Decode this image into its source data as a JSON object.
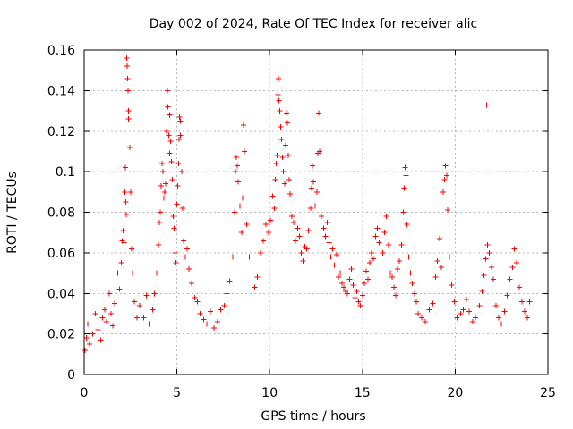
{
  "chart_data": {
    "type": "scatter",
    "title": "Day 002 of 2024, Rate Of TEC Index for receiver alic",
    "xlabel": "GPS time / hours",
    "ylabel": "ROTI / TECUs",
    "xlim": [
      0,
      25
    ],
    "ylim": [
      0,
      0.16
    ],
    "x_ticks": [
      0,
      5,
      10,
      15,
      20,
      25
    ],
    "x_tick_labels": [
      "0",
      "5",
      "10",
      "15",
      "20",
      "25"
    ],
    "y_ticks": [
      0,
      0.02,
      0.04,
      0.06,
      0.08,
      0.1,
      0.12,
      0.14,
      0.16
    ],
    "y_tick_labels": [
      "0",
      "0.02",
      "0.04",
      "0.06",
      "0.08",
      "0.1",
      "0.12",
      "0.14",
      "0.16"
    ],
    "grid": true,
    "marker": "+",
    "series": [
      {
        "name": "ROTI",
        "color": "#ff0000",
        "points": [
          [
            0.05,
            0.012
          ],
          [
            0.12,
            0.018
          ],
          [
            0.2,
            0.025
          ],
          [
            0.3,
            0.015
          ],
          [
            0.45,
            0.02
          ],
          [
            0.6,
            0.03
          ],
          [
            0.75,
            0.022
          ],
          [
            0.9,
            0.017
          ],
          [
            1.0,
            0.028
          ],
          [
            1.1,
            0.032
          ],
          [
            1.2,
            0.026
          ],
          [
            1.35,
            0.04
          ],
          [
            1.45,
            0.03
          ],
          [
            1.55,
            0.024
          ],
          [
            1.65,
            0.035
          ],
          [
            1.8,
            0.05
          ],
          [
            1.9,
            0.042
          ],
          [
            2.0,
            0.055
          ],
          [
            2.05,
            0.066
          ],
          [
            2.1,
            0.071
          ],
          [
            2.15,
            0.065
          ],
          [
            2.2,
            0.09
          ],
          [
            2.22,
            0.102
          ],
          [
            2.25,
            0.085
          ],
          [
            2.28,
            0.079
          ],
          [
            2.3,
            0.156
          ],
          [
            2.32,
            0.152
          ],
          [
            2.34,
            0.146
          ],
          [
            2.36,
            0.14
          ],
          [
            2.38,
            0.13
          ],
          [
            2.4,
            0.126
          ],
          [
            2.45,
            0.112
          ],
          [
            2.5,
            0.09
          ],
          [
            2.55,
            0.062
          ],
          [
            2.6,
            0.05
          ],
          [
            2.7,
            0.036
          ],
          [
            2.85,
            0.028
          ],
          [
            3.0,
            0.034
          ],
          [
            3.2,
            0.028
          ],
          [
            3.35,
            0.039
          ],
          [
            3.5,
            0.025
          ],
          [
            3.7,
            0.032
          ],
          [
            3.8,
            0.04
          ],
          [
            3.9,
            0.05
          ],
          [
            4.0,
            0.064
          ],
          [
            4.05,
            0.075
          ],
          [
            4.1,
            0.08
          ],
          [
            4.15,
            0.093
          ],
          [
            4.2,
            0.104
          ],
          [
            4.25,
            0.1
          ],
          [
            4.3,
            0.087
          ],
          [
            4.35,
            0.09
          ],
          [
            4.4,
            0.094
          ],
          [
            4.45,
            0.12
          ],
          [
            4.5,
            0.14
          ],
          [
            4.52,
            0.132
          ],
          [
            4.55,
            0.118
          ],
          [
            4.6,
            0.109
          ],
          [
            4.62,
            0.128
          ],
          [
            4.65,
            0.115
          ],
          [
            4.7,
            0.105
          ],
          [
            4.75,
            0.096
          ],
          [
            4.8,
            0.078
          ],
          [
            4.85,
            0.072
          ],
          [
            4.9,
            0.06
          ],
          [
            4.95,
            0.055
          ],
          [
            5.0,
            0.084
          ],
          [
            5.05,
            0.093
          ],
          [
            5.1,
            0.104
          ],
          [
            5.12,
            0.116
          ],
          [
            5.15,
            0.127
          ],
          [
            5.18,
            0.125
          ],
          [
            5.2,
            0.118
          ],
          [
            5.25,
            0.1
          ],
          [
            5.3,
            0.082
          ],
          [
            5.35,
            0.066
          ],
          [
            5.45,
            0.058
          ],
          [
            5.55,
            0.062
          ],
          [
            5.65,
            0.052
          ],
          [
            5.8,
            0.045
          ],
          [
            5.95,
            0.038
          ],
          [
            6.1,
            0.036
          ],
          [
            6.25,
            0.03
          ],
          [
            6.45,
            0.027
          ],
          [
            6.6,
            0.025
          ],
          [
            6.8,
            0.031
          ],
          [
            7.0,
            0.023
          ],
          [
            7.2,
            0.026
          ],
          [
            7.35,
            0.032
          ],
          [
            7.55,
            0.034
          ],
          [
            7.7,
            0.04
          ],
          [
            7.85,
            0.046
          ],
          [
            8.0,
            0.058
          ],
          [
            8.1,
            0.08
          ],
          [
            8.15,
            0.1
          ],
          [
            8.2,
            0.107
          ],
          [
            8.25,
            0.103
          ],
          [
            8.3,
            0.095
          ],
          [
            8.4,
            0.083
          ],
          [
            8.5,
            0.07
          ],
          [
            8.55,
            0.087
          ],
          [
            8.6,
            0.123
          ],
          [
            8.65,
            0.11
          ],
          [
            8.75,
            0.074
          ],
          [
            8.9,
            0.058
          ],
          [
            9.05,
            0.05
          ],
          [
            9.2,
            0.043
          ],
          [
            9.35,
            0.048
          ],
          [
            9.5,
            0.06
          ],
          [
            9.65,
            0.066
          ],
          [
            9.8,
            0.074
          ],
          [
            9.95,
            0.07
          ],
          [
            10.05,
            0.076
          ],
          [
            10.15,
            0.088
          ],
          [
            10.25,
            0.082
          ],
          [
            10.3,
            0.096
          ],
          [
            10.35,
            0.104
          ],
          [
            10.4,
            0.108
          ],
          [
            10.45,
            0.138
          ],
          [
            10.47,
            0.146
          ],
          [
            10.5,
            0.135
          ],
          [
            10.55,
            0.13
          ],
          [
            10.6,
            0.122
          ],
          [
            10.65,
            0.116
          ],
          [
            10.7,
            0.107
          ],
          [
            10.75,
            0.1
          ],
          [
            10.8,
            0.094
          ],
          [
            10.85,
            0.113
          ],
          [
            10.9,
            0.129
          ],
          [
            10.95,
            0.124
          ],
          [
            11.0,
            0.108
          ],
          [
            11.05,
            0.096
          ],
          [
            11.1,
            0.089
          ],
          [
            11.2,
            0.078
          ],
          [
            11.3,
            0.075
          ],
          [
            11.4,
            0.066
          ],
          [
            11.5,
            0.072
          ],
          [
            11.6,
            0.068
          ],
          [
            11.7,
            0.06
          ],
          [
            11.8,
            0.056
          ],
          [
            11.9,
            0.063
          ],
          [
            12.0,
            0.062
          ],
          [
            12.1,
            0.071
          ],
          [
            12.2,
            0.082
          ],
          [
            12.25,
            0.092
          ],
          [
            12.3,
            0.103
          ],
          [
            12.35,
            0.095
          ],
          [
            12.45,
            0.083
          ],
          [
            12.55,
            0.09
          ],
          [
            12.6,
            0.109
          ],
          [
            12.65,
            0.129
          ],
          [
            12.7,
            0.11
          ],
          [
            12.8,
            0.078
          ],
          [
            12.9,
            0.072
          ],
          [
            13.0,
            0.068
          ],
          [
            13.1,
            0.075
          ],
          [
            13.2,
            0.065
          ],
          [
            13.3,
            0.058
          ],
          [
            13.4,
            0.062
          ],
          [
            13.5,
            0.054
          ],
          [
            13.6,
            0.059
          ],
          [
            13.7,
            0.048
          ],
          [
            13.8,
            0.05
          ],
          [
            13.9,
            0.045
          ],
          [
            14.0,
            0.043
          ],
          [
            14.1,
            0.041
          ],
          [
            14.2,
            0.04
          ],
          [
            14.3,
            0.047
          ],
          [
            14.4,
            0.052
          ],
          [
            14.5,
            0.044
          ],
          [
            14.6,
            0.038
          ],
          [
            14.7,
            0.041
          ],
          [
            14.8,
            0.036
          ],
          [
            14.9,
            0.034
          ],
          [
            15.0,
            0.039
          ],
          [
            15.1,
            0.045
          ],
          [
            15.2,
            0.051
          ],
          [
            15.3,
            0.047
          ],
          [
            15.4,
            0.055
          ],
          [
            15.5,
            0.06
          ],
          [
            15.6,
            0.057
          ],
          [
            15.7,
            0.068
          ],
          [
            15.8,
            0.072
          ],
          [
            15.9,
            0.065
          ],
          [
            16.0,
            0.054
          ],
          [
            16.1,
            0.06
          ],
          [
            16.2,
            0.07
          ],
          [
            16.3,
            0.078
          ],
          [
            16.4,
            0.064
          ],
          [
            16.5,
            0.05
          ],
          [
            16.6,
            0.048
          ],
          [
            16.7,
            0.043
          ],
          [
            16.8,
            0.039
          ],
          [
            16.9,
            0.052
          ],
          [
            17.0,
            0.056
          ],
          [
            17.1,
            0.064
          ],
          [
            17.2,
            0.08
          ],
          [
            17.25,
            0.092
          ],
          [
            17.3,
            0.102
          ],
          [
            17.35,
            0.098
          ],
          [
            17.4,
            0.074
          ],
          [
            17.5,
            0.058
          ],
          [
            17.6,
            0.05
          ],
          [
            17.7,
            0.045
          ],
          [
            17.8,
            0.04
          ],
          [
            17.9,
            0.036
          ],
          [
            18.0,
            0.03
          ],
          [
            18.2,
            0.028
          ],
          [
            18.4,
            0.026
          ],
          [
            18.6,
            0.032
          ],
          [
            18.8,
            0.035
          ],
          [
            18.95,
            0.048
          ],
          [
            19.05,
            0.056
          ],
          [
            19.15,
            0.067
          ],
          [
            19.25,
            0.053
          ],
          [
            19.35,
            0.09
          ],
          [
            19.42,
            0.096
          ],
          [
            19.48,
            0.103
          ],
          [
            19.55,
            0.098
          ],
          [
            19.6,
            0.081
          ],
          [
            19.7,
            0.058
          ],
          [
            19.8,
            0.044
          ],
          [
            19.95,
            0.036
          ],
          [
            20.1,
            0.028
          ],
          [
            20.3,
            0.03
          ],
          [
            20.45,
            0.032
          ],
          [
            20.6,
            0.037
          ],
          [
            20.75,
            0.031
          ],
          [
            20.95,
            0.026
          ],
          [
            21.1,
            0.028
          ],
          [
            21.3,
            0.034
          ],
          [
            21.45,
            0.041
          ],
          [
            21.55,
            0.049
          ],
          [
            21.65,
            0.057
          ],
          [
            21.7,
            0.133
          ],
          [
            21.75,
            0.064
          ],
          [
            21.85,
            0.06
          ],
          [
            21.95,
            0.053
          ],
          [
            22.05,
            0.047
          ],
          [
            22.2,
            0.034
          ],
          [
            22.35,
            0.028
          ],
          [
            22.5,
            0.025
          ],
          [
            22.65,
            0.031
          ],
          [
            22.8,
            0.039
          ],
          [
            22.95,
            0.047
          ],
          [
            23.1,
            0.053
          ],
          [
            23.2,
            0.062
          ],
          [
            23.3,
            0.055
          ],
          [
            23.45,
            0.043
          ],
          [
            23.6,
            0.036
          ],
          [
            23.75,
            0.031
          ],
          [
            23.9,
            0.028
          ],
          [
            24.0,
            0.036
          ]
        ]
      }
    ]
  }
}
